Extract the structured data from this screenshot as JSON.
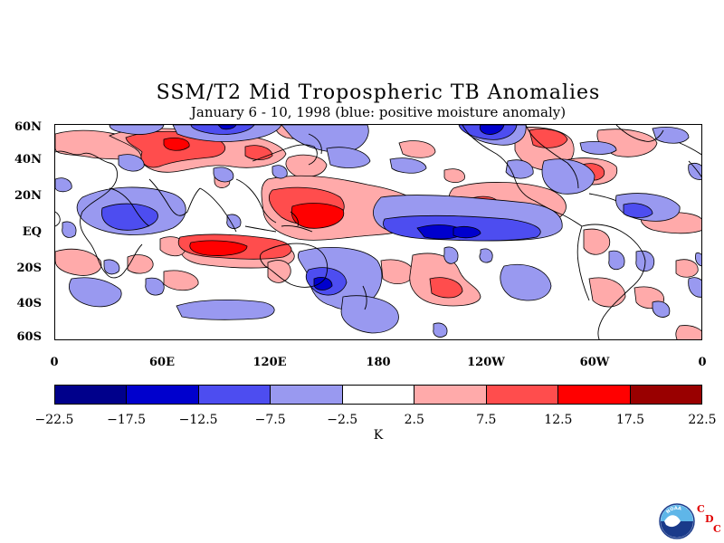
{
  "title": "SSM/T2 Mid Tropospheric TB Anomalies",
  "subtitle": "January 6 - 10, 1998 (blue: positive moisture anomaly)",
  "lat_labels": [
    "60N",
    "40N",
    "20N",
    "EQ",
    "20S",
    "40S",
    "60S"
  ],
  "lon_labels": [
    "0",
    "60E",
    "120E",
    "180",
    "120W",
    "60W",
    "0"
  ],
  "colorbar": {
    "colors": [
      "#00008b",
      "#0000cd",
      "#4d4df0",
      "#9999f0",
      "#ffffff",
      "#ffaaaa",
      "#ff4d4d",
      "#ff0000",
      "#990000"
    ],
    "labels": [
      "−22.5",
      "−17.5",
      "−12.5",
      "−7.5",
      "−2.5",
      "2.5",
      "7.5",
      "12.5",
      "17.5",
      "22.5"
    ],
    "units": "K"
  },
  "logo": {
    "text": "NOAA",
    "letters": [
      "C",
      "D",
      "C"
    ]
  }
}
